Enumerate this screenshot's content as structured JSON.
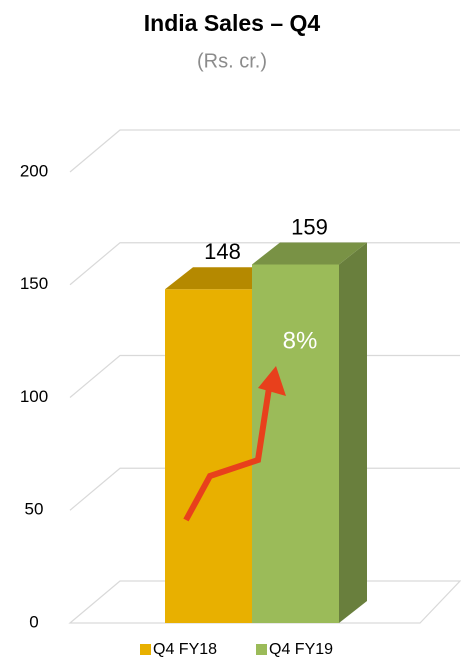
{
  "chart_data": {
    "type": "bar3d",
    "title": "India Sales – Q4",
    "subtitle": "(Rs. cr.)",
    "categories": [
      "Q4 FY18",
      "Q4 FY19"
    ],
    "values": [
      148,
      159
    ],
    "colors": [
      "#e8b000",
      "#9bbb59"
    ],
    "ylim": [
      0,
      200
    ],
    "yticks": [
      0,
      50,
      100,
      150,
      200
    ],
    "grid": true,
    "legend": "bottom",
    "annotation": "8%"
  }
}
